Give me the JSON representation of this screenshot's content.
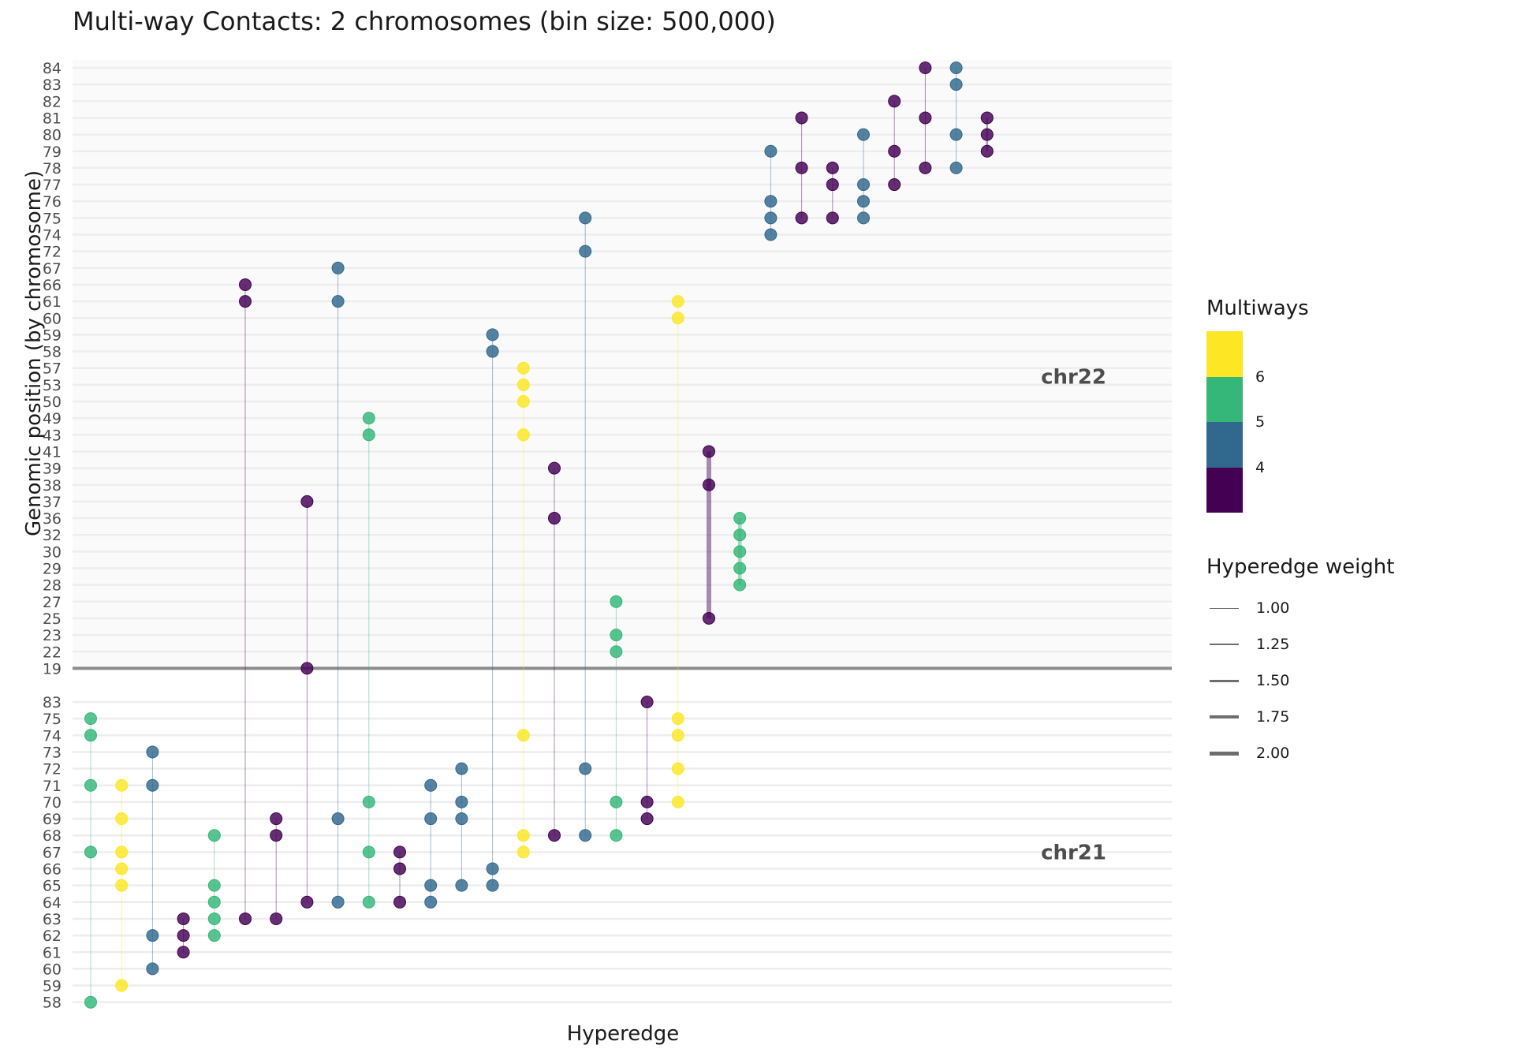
{
  "title": "Multi-way Contacts: 2 chromosomes (bin size: 500,000)",
  "colors": {
    "m3": "#440154",
    "m4": "#31688e",
    "m5": "#35b779",
    "m6": "#fde725",
    "separator": "#8c8c8c",
    "grid": "#ededed",
    "chr22_bg": "#fafafa",
    "axis_text": "#4d4d4d",
    "chr_label": "#4d4d4d"
  },
  "legend": {
    "color_title": "Multiways",
    "color_ticks": [
      "6",
      "5",
      "4"
    ],
    "weight_title": "Hyperedge weight",
    "weight_items": [
      {
        "label": "1.00",
        "width": 1
      },
      {
        "label": "1.25",
        "width": 2
      },
      {
        "label": "1.50",
        "width": 3
      },
      {
        "label": "1.75",
        "width": 4
      },
      {
        "label": "2.00",
        "width": 5
      }
    ]
  },
  "chart_data": {
    "type": "scatter",
    "title": "Multi-way Contacts: 2 chromosomes (bin size: 500,000)",
    "xlabel": "Hyperedge",
    "ylabel": "Genomic position (by chromosome)",
    "grid": true,
    "legend_position": "right",
    "chromosomes": [
      {
        "name": "chr22",
        "ticks": [
          84,
          83,
          82,
          81,
          80,
          79,
          78,
          77,
          76,
          75,
          74,
          72,
          67,
          66,
          61,
          60,
          59,
          58,
          57,
          53,
          50,
          49,
          43,
          41,
          39,
          38,
          37,
          36,
          32,
          30,
          29,
          28,
          27,
          25,
          23,
          22,
          19
        ]
      },
      {
        "name": "chr21",
        "ticks": [
          83,
          75,
          74,
          73,
          72,
          71,
          70,
          69,
          68,
          67,
          66,
          65,
          64,
          63,
          62,
          61,
          60,
          59,
          58
        ]
      }
    ],
    "hyperedges": [
      {
        "id": 1,
        "multiway": 5,
        "weight": 1.0,
        "chr22": [],
        "chr21": [
          75,
          74,
          71,
          67,
          58
        ]
      },
      {
        "id": 2,
        "multiway": 6,
        "weight": 1.0,
        "chr22": [],
        "chr21": [
          71,
          69,
          67,
          66,
          65,
          59
        ]
      },
      {
        "id": 3,
        "multiway": 4,
        "weight": 1.0,
        "chr22": [],
        "chr21": [
          73,
          71,
          62,
          60
        ]
      },
      {
        "id": 4,
        "multiway": 3,
        "weight": 1.0,
        "chr22": [],
        "chr21": [
          63,
          62,
          61
        ]
      },
      {
        "id": 5,
        "multiway": 5,
        "weight": 1.0,
        "chr22": [],
        "chr21": [
          68,
          65,
          64,
          63,
          62
        ]
      },
      {
        "id": 6,
        "multiway": 3,
        "weight": 1.0,
        "chr22": [
          66,
          61
        ],
        "chr21": [
          63
        ]
      },
      {
        "id": 7,
        "multiway": 3,
        "weight": 1.0,
        "chr22": [],
        "chr21": [
          69,
          68,
          63
        ]
      },
      {
        "id": 8,
        "multiway": 3,
        "weight": 1.0,
        "chr22": [
          37,
          19
        ],
        "chr21": [
          64
        ]
      },
      {
        "id": 9,
        "multiway": 4,
        "weight": 1.0,
        "chr22": [
          67,
          61
        ],
        "chr21": [
          69,
          64
        ]
      },
      {
        "id": 10,
        "multiway": 5,
        "weight": 1.0,
        "chr22": [
          49,
          43
        ],
        "chr21": [
          70,
          67,
          64
        ]
      },
      {
        "id": 11,
        "multiway": 3,
        "weight": 1.0,
        "chr22": [],
        "chr21": [
          67,
          66,
          64
        ]
      },
      {
        "id": 12,
        "multiway": 4,
        "weight": 1.0,
        "chr22": [],
        "chr21": [
          71,
          69,
          65,
          64
        ]
      },
      {
        "id": 13,
        "multiway": 4,
        "weight": 1.0,
        "chr22": [],
        "chr21": [
          72,
          70,
          69,
          65
        ]
      },
      {
        "id": 14,
        "multiway": 4,
        "weight": 1.0,
        "chr22": [
          59,
          58
        ],
        "chr21": [
          66,
          65
        ]
      },
      {
        "id": 15,
        "multiway": 7,
        "weight": 1.0,
        "chr22": [
          57,
          53,
          50,
          43
        ],
        "chr21": [
          74,
          68,
          67
        ]
      },
      {
        "id": 16,
        "multiway": 3,
        "weight": 1.0,
        "chr22": [
          39,
          36
        ],
        "chr21": [
          68
        ]
      },
      {
        "id": 17,
        "multiway": 4,
        "weight": 1.0,
        "chr22": [
          75,
          72
        ],
        "chr21": [
          72,
          68
        ]
      },
      {
        "id": 18,
        "multiway": 5,
        "weight": 1.0,
        "chr22": [
          27,
          23,
          22
        ],
        "chr21": [
          70,
          68
        ]
      },
      {
        "id": 19,
        "multiway": 3,
        "weight": 1.0,
        "chr22": [],
        "chr21": [
          83,
          70,
          69
        ]
      },
      {
        "id": 20,
        "multiway": 6,
        "weight": 1.0,
        "chr22": [
          61,
          60
        ],
        "chr21": [
          75,
          74,
          72,
          70
        ]
      },
      {
        "id": 21,
        "multiway": 3,
        "weight": 2.0,
        "chr22": [
          41,
          38,
          25
        ],
        "chr21": []
      },
      {
        "id": 22,
        "multiway": 5,
        "weight": 1.75,
        "chr22": [
          36,
          32,
          30,
          29,
          28
        ],
        "chr21": []
      },
      {
        "id": 23,
        "multiway": 4,
        "weight": 1.0,
        "chr22": [
          79,
          76,
          75,
          74
        ],
        "chr21": []
      },
      {
        "id": 24,
        "multiway": 3,
        "weight": 1.0,
        "chr22": [
          81,
          78,
          75
        ],
        "chr21": []
      },
      {
        "id": 25,
        "multiway": 3,
        "weight": 1.0,
        "chr22": [
          78,
          77,
          75
        ],
        "chr21": []
      },
      {
        "id": 26,
        "multiway": 4,
        "weight": 1.0,
        "chr22": [
          80,
          77,
          76,
          75
        ],
        "chr21": []
      },
      {
        "id": 27,
        "multiway": 3,
        "weight": 1.0,
        "chr22": [
          82,
          79,
          77
        ],
        "chr21": []
      },
      {
        "id": 28,
        "multiway": 3,
        "weight": 1.0,
        "chr22": [
          84,
          81,
          78
        ],
        "chr21": []
      },
      {
        "id": 29,
        "multiway": 4,
        "weight": 1.0,
        "chr22": [
          84,
          83,
          80,
          78
        ],
        "chr21": []
      },
      {
        "id": 30,
        "multiway": 3,
        "weight": 1.25,
        "chr22": [
          81,
          80,
          79
        ],
        "chr21": []
      }
    ],
    "color_scale": {
      "name": "viridis (binned)",
      "breaks": [
        4,
        5,
        6
      ]
    },
    "weight_scale": {
      "breaks": [
        1.0,
        1.25,
        1.5,
        1.75,
        2.0
      ]
    }
  }
}
